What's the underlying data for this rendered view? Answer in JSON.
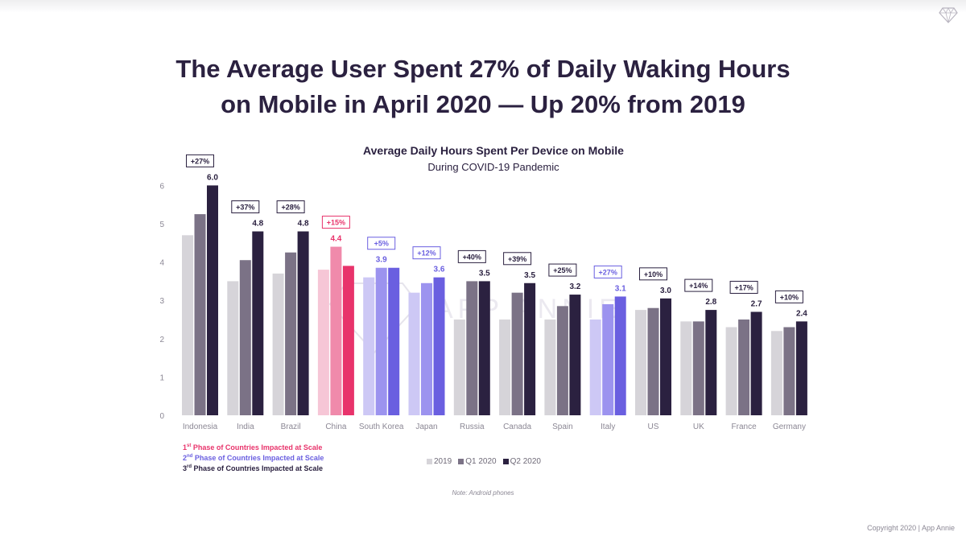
{
  "headline": {
    "line1": "The Average User Spent 27% of Daily Waking Hours",
    "line2": "on Mobile in April 2020 — Up 20% from 2019"
  },
  "watermark": "APP ANNIE",
  "footer": {
    "note": "Note: Android phones",
    "copyright": "Copyright 2020 | App Annie"
  },
  "phase_legend": [
    {
      "num": "1",
      "sup": "st",
      "text": " Phase of Countries Impacted at Scale",
      "color": "#e8336b"
    },
    {
      "num": "2",
      "sup": "nd",
      "text": " Phase of Countries Impacted at Scale",
      "color": "#6a5fe0"
    },
    {
      "num": "3",
      "sup": "rd",
      "text": " Phase of Countries Impacted at Scale",
      "color": "#2b2140"
    }
  ],
  "chart_data": {
    "type": "bar",
    "title": "Average Daily Hours Spent Per Device on Mobile",
    "subtitle": "During COVID-19 Pandemic",
    "xlabel": "",
    "ylabel": "",
    "ylim": [
      0,
      6
    ],
    "yticks": [
      0,
      1,
      2,
      3,
      4,
      5,
      6
    ],
    "grid": false,
    "legend_position": "bottom",
    "categories": [
      "Indonesia",
      "India",
      "Brazil",
      "China",
      "South Korea",
      "Japan",
      "Russia",
      "Canada",
      "Spain",
      "Italy",
      "US",
      "UK",
      "France",
      "Germany"
    ],
    "phases": [
      3,
      3,
      3,
      1,
      2,
      2,
      3,
      3,
      3,
      2,
      3,
      3,
      3,
      3
    ],
    "series": [
      {
        "name": "2019",
        "values": [
          4.7,
          3.5,
          3.7,
          3.8,
          3.6,
          3.2,
          2.5,
          2.5,
          2.5,
          2.5,
          2.75,
          2.45,
          2.3,
          2.2
        ]
      },
      {
        "name": "Q1 2020",
        "values": [
          5.25,
          4.05,
          4.25,
          4.4,
          3.85,
          3.45,
          3.5,
          3.2,
          2.85,
          2.9,
          2.8,
          2.45,
          2.5,
          2.3
        ]
      },
      {
        "name": "Q2 2020",
        "values": [
          6.0,
          4.8,
          4.8,
          3.9,
          3.85,
          3.6,
          3.5,
          3.45,
          3.15,
          3.1,
          3.05,
          2.75,
          2.7,
          2.45
        ]
      }
    ],
    "value_labels": [
      "6.0",
      "4.8",
      "4.8",
      "4.4",
      "3.9",
      "3.6",
      "3.5",
      "3.5",
      "3.2",
      "3.1",
      "3.0",
      "2.8",
      "2.7",
      "2.4"
    ],
    "label_on_series": [
      2,
      2,
      2,
      1,
      1,
      2,
      2,
      2,
      2,
      2,
      2,
      2,
      2,
      2
    ],
    "growth_labels": [
      "+27%",
      "+37%",
      "+28%",
      "+15%",
      "+5%",
      "+12%",
      "+40%",
      "+39%",
      "+25%",
      "+27%",
      "+10%",
      "+14%",
      "+17%",
      "+10%"
    ],
    "colors": {
      "phase1": [
        "#f6c6d6",
        "#f08aab",
        "#e8336b"
      ],
      "phase2": [
        "#cdc8f5",
        "#9c93ef",
        "#6a5fe0"
      ],
      "phase3": [
        "#d6d4d9",
        "#7b7286",
        "#2b2140"
      ],
      "axis_text": "#8b8794"
    }
  }
}
